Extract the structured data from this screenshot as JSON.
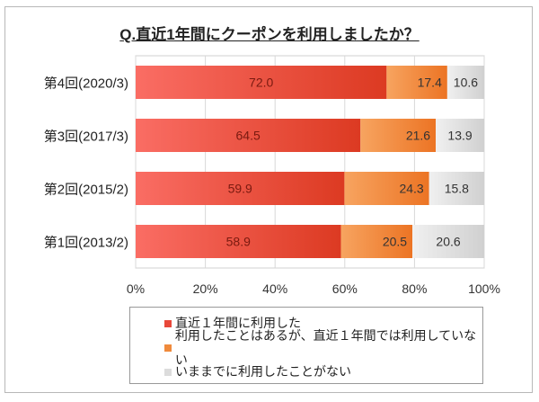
{
  "chart_data": {
    "type": "bar",
    "orientation": "horizontal",
    "stacked": true,
    "title": "Q.直近1年間にクーポンを利用しましたか？",
    "categories": [
      "第4回(2020/3)",
      "第3回(2017/3)",
      "第2回(2015/2)",
      "第1回(2013/2)"
    ],
    "series": [
      {
        "name": "直近１年間に利用した",
        "values": [
          72.0,
          64.5,
          59.9,
          58.9
        ],
        "color": "#e8483a"
      },
      {
        "name": "利用したことはあるが、直近１年間では利用していない",
        "values": [
          17.4,
          21.6,
          24.3,
          20.5
        ],
        "color": "#f08a3c"
      },
      {
        "name": "いままでに利用したことがない",
        "values": [
          10.6,
          13.9,
          15.8,
          20.6
        ],
        "color": "#dcdcdc"
      }
    ],
    "xticks": [
      "0%",
      "20%",
      "40%",
      "60%",
      "80%",
      "100%"
    ],
    "xlim": [
      0,
      100
    ],
    "grid": true,
    "legend": "bottom"
  }
}
